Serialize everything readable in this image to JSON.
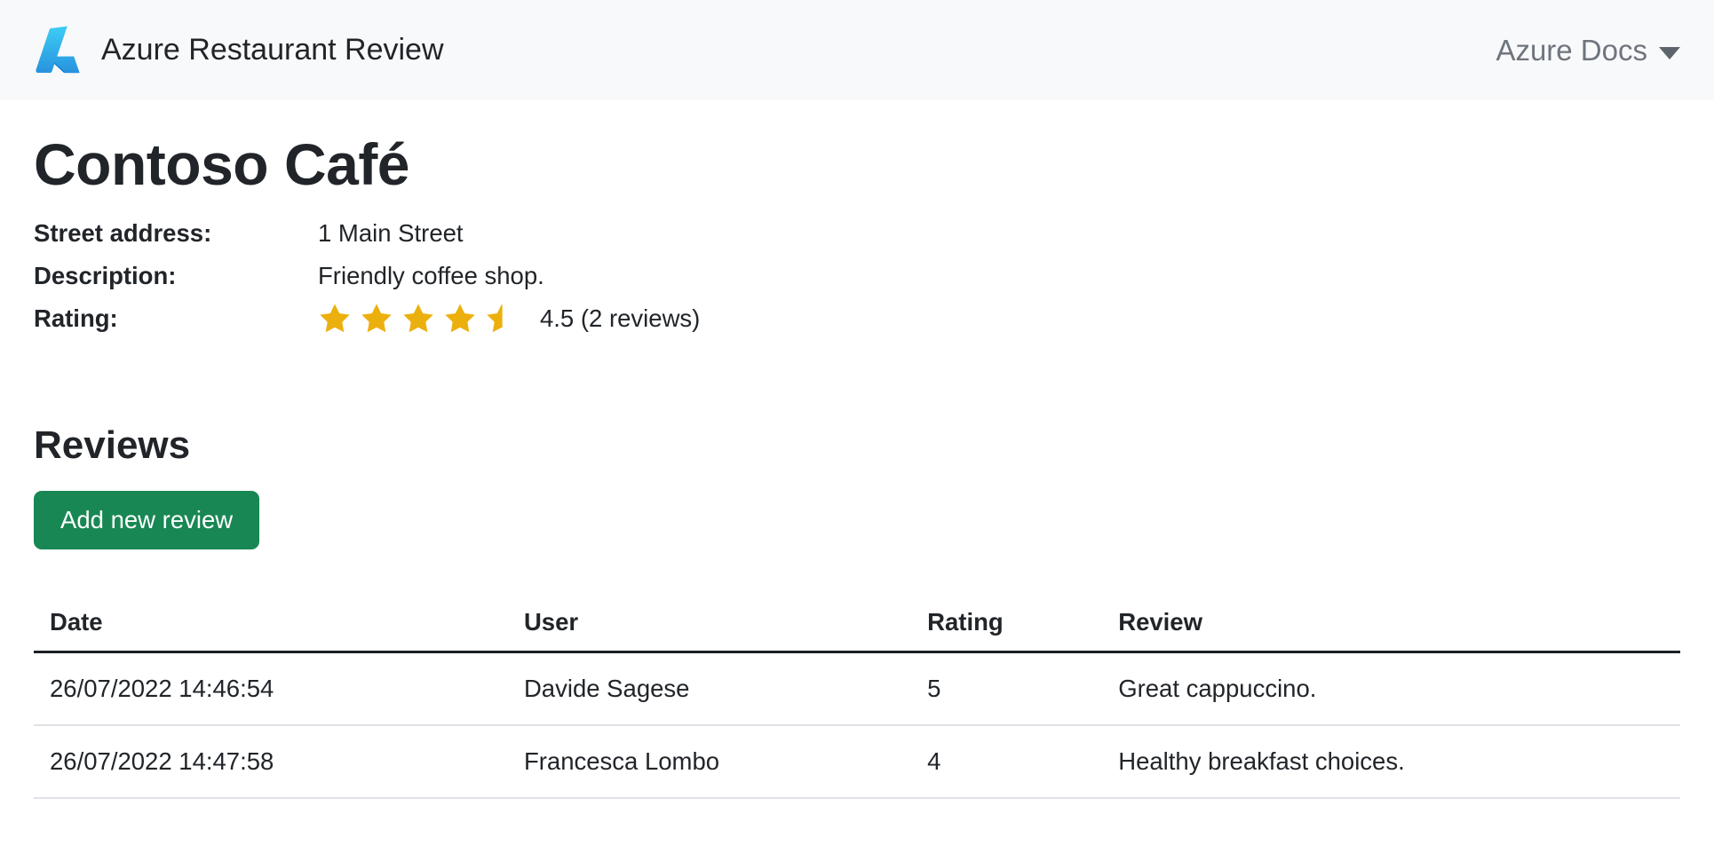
{
  "navbar": {
    "brand": "Azure Restaurant Review",
    "menu": "Azure Docs",
    "icons": {
      "brand_logo": "azure-logo",
      "menu_caret": "chevron-down"
    }
  },
  "restaurant": {
    "name": "Contoso Café",
    "street_label": "Street address:",
    "street": "1 Main Street",
    "description_label": "Description:",
    "description": "Friendly coffee shop.",
    "rating_label": "Rating:",
    "rating_value": 4.5,
    "stars_full": 4,
    "stars_half": 1,
    "rating_text": "4.5 (2 reviews)"
  },
  "reviews": {
    "heading": "Reviews",
    "add_button": "Add new review",
    "columns": [
      "Date",
      "User",
      "Rating",
      "Review"
    ],
    "rows": [
      {
        "date": "26/07/2022 14:46:54",
        "user": "Davide Sagese",
        "rating": "5",
        "review": "Great cappuccino."
      },
      {
        "date": "26/07/2022 14:47:58",
        "user": "Francesca Lombo",
        "rating": "4",
        "review": "Healthy breakfast choices."
      }
    ]
  },
  "colors": {
    "star": "#ecb00e",
    "button_bg": "#198754",
    "navbar_bg": "#f8f9fa",
    "nav_link": "#6f757d",
    "header_border": "#1c2025",
    "row_border": "#dfe2e6"
  }
}
